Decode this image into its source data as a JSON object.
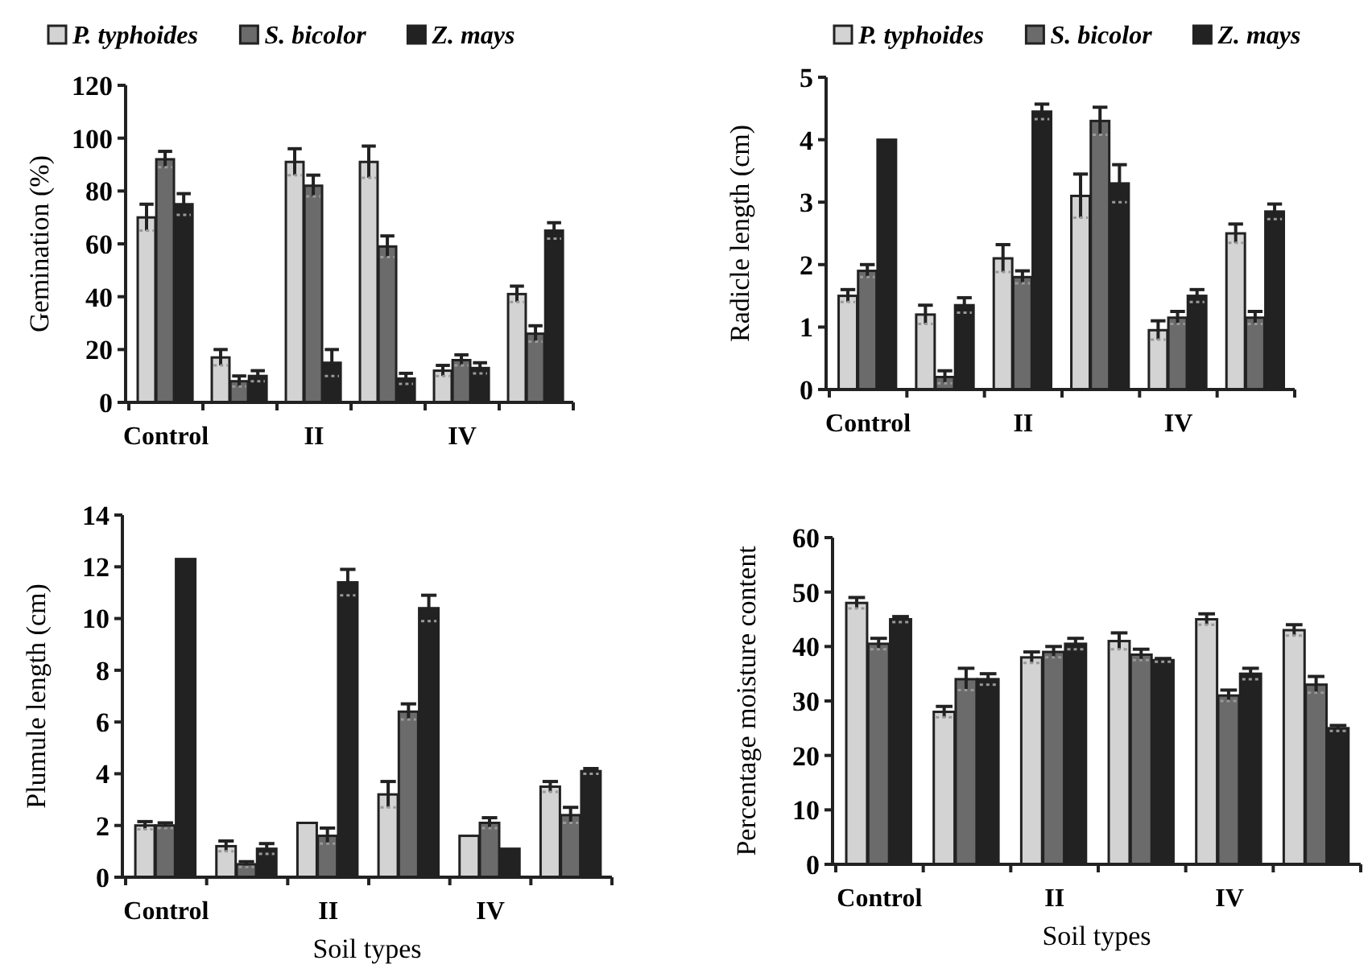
{
  "chart_data": [
    {
      "type": "bar",
      "ylabel": "Gemination (%)",
      "categories": [
        "Control",
        null,
        "II",
        null,
        "IV",
        null
      ],
      "ylim": [
        0,
        120
      ],
      "yticks": [
        0,
        20,
        40,
        60,
        80,
        100,
        120
      ],
      "legend": "top",
      "grid": false,
      "series": [
        {
          "name": "P. typhoides",
          "color": "#d3d3d3",
          "values": [
            70,
            17,
            91,
            91,
            12,
            41
          ],
          "errors": [
            5,
            3,
            5,
            6,
            2,
            3
          ]
        },
        {
          "name": "S. bicolor",
          "color": "#6b6b6b",
          "values": [
            92,
            8,
            82,
            59,
            16,
            26
          ],
          "errors": [
            3,
            2,
            4,
            4,
            2,
            3
          ]
        },
        {
          "name": "Z. mays",
          "color": "#222222",
          "values": [
            75,
            10,
            15,
            9,
            13,
            65
          ],
          "errors": [
            4,
            2,
            5,
            2,
            2,
            3
          ]
        }
      ]
    },
    {
      "type": "bar",
      "ylabel": "Radicle length (cm)",
      "categories": [
        "Control",
        null,
        "II",
        null,
        "IV",
        null
      ],
      "ylim": [
        0,
        5
      ],
      "yticks": [
        0,
        1,
        2,
        3,
        4,
        5
      ],
      "legend": "top",
      "grid": false,
      "series": [
        {
          "name": "P. typhoides",
          "color": "#d3d3d3",
          "values": [
            1.5,
            1.2,
            2.1,
            3.1,
            0.95,
            2.5
          ],
          "errors": [
            0.1,
            0.15,
            0.22,
            0.35,
            0.15,
            0.15
          ]
        },
        {
          "name": "S. bicolor",
          "color": "#6b6b6b",
          "values": [
            1.9,
            0.2,
            1.8,
            4.3,
            1.15,
            1.15
          ],
          "errors": [
            0.1,
            0.1,
            0.1,
            0.22,
            0.1,
            0.1
          ]
        },
        {
          "name": "Z. mays",
          "color": "#222222",
          "values": [
            4.0,
            1.35,
            4.45,
            3.3,
            1.5,
            2.85
          ],
          "errors": [
            null,
            0.12,
            0.12,
            0.3,
            0.1,
            0.12
          ]
        }
      ]
    },
    {
      "type": "bar",
      "ylabel": "Plumule length (cm)",
      "xlabel": "Soil types",
      "categories": [
        "Control",
        null,
        "II",
        null,
        "IV",
        null
      ],
      "ylim": [
        0,
        14
      ],
      "yticks": [
        0,
        2,
        4,
        6,
        8,
        10,
        12,
        14
      ],
      "grid": false,
      "series": [
        {
          "color": "#d3d3d3",
          "values": [
            2.0,
            1.2,
            2.1,
            3.2,
            1.6,
            3.5
          ],
          "errors": [
            0.15,
            0.2,
            null,
            0.5,
            null,
            0.2
          ]
        },
        {
          "color": "#6b6b6b",
          "values": [
            2.0,
            0.5,
            1.6,
            6.4,
            2.1,
            2.4
          ],
          "errors": [
            0.1,
            0.1,
            0.3,
            0.3,
            0.2,
            0.3
          ]
        },
        {
          "color": "#222222",
          "values": [
            12.3,
            1.1,
            11.4,
            10.4,
            1.1,
            4.1
          ],
          "errors": [
            null,
            0.2,
            0.5,
            0.5,
            null,
            0.1
          ]
        }
      ]
    },
    {
      "type": "bar",
      "ylabel": "Percentage moisture content",
      "xlabel": "Soil types",
      "categories": [
        "Control",
        null,
        "II",
        null,
        "IV",
        null
      ],
      "ylim": [
        0,
        60
      ],
      "yticks": [
        0,
        10,
        20,
        30,
        40,
        50,
        60
      ],
      "grid": false,
      "series": [
        {
          "color": "#d3d3d3",
          "values": [
            48,
            28,
            38,
            41,
            45,
            43
          ],
          "errors": [
            1,
            1,
            1,
            1.5,
            1,
            1
          ]
        },
        {
          "color": "#6b6b6b",
          "values": [
            40.5,
            34,
            39,
            38.5,
            31,
            33
          ],
          "errors": [
            1,
            2,
            1,
            1,
            1,
            1.5
          ]
        },
        {
          "color": "#222222",
          "values": [
            45,
            34,
            40.5,
            37.5,
            35,
            25
          ],
          "errors": [
            0.5,
            1,
            1,
            0.3,
            1,
            0.5
          ]
        }
      ]
    }
  ]
}
